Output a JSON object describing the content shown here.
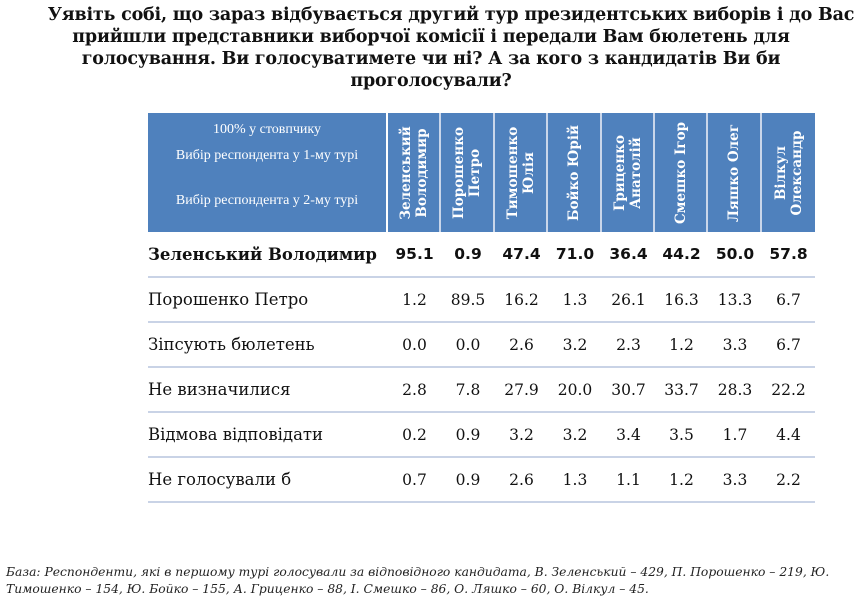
{
  "title": {
    "lines": [
      "Уявіть собі, що зараз відбувається другий тур президентських виборів і до Вас",
      "прийшли представники виборчої комісії і передали Вам бюлетень для",
      "голосування. Ви голосуватимете чи ні? А за кого з кандидатів Ви би",
      "проголосували?"
    ]
  },
  "table": {
    "stub_header": {
      "line1": "100% у стовпчику",
      "line2": "Вибір респондента у 1-му турі",
      "line3": "Вибір респондента у 2-му турі"
    },
    "columns": [
      {
        "line1": "Зеленський",
        "line2": "Володимир"
      },
      {
        "line1": "Порошенко",
        "line2": "Петро"
      },
      {
        "line1": "Тимошенко",
        "line2": "Юлія"
      },
      {
        "line1": "Бойко Юрій",
        "line2": ""
      },
      {
        "line1": "Гриценко",
        "line2": "Анатолій"
      },
      {
        "line1": "Смешко Ігор",
        "line2": ""
      },
      {
        "line1": "Ляшко Олег",
        "line2": ""
      },
      {
        "line1": "Вілкул",
        "line2": "Олександр"
      }
    ],
    "rows": [
      {
        "label": "Зеленський Володимир",
        "values": [
          "95.1",
          "0.9",
          "47.4",
          "71.0",
          "36.4",
          "44.2",
          "50.0",
          "57.8"
        ]
      },
      {
        "label": "Порошенко Петро",
        "values": [
          "1.2",
          "89.5",
          "16.2",
          "1.3",
          "26.1",
          "16.3",
          "13.3",
          "6.7"
        ]
      },
      {
        "label": "Зіпсують бюлетень",
        "values": [
          "0.0",
          "0.0",
          "2.6",
          "3.2",
          "2.3",
          "1.2",
          "3.3",
          "6.7"
        ]
      },
      {
        "label": "Не визначилися",
        "values": [
          "2.8",
          "7.8",
          "27.9",
          "20.0",
          "30.7",
          "33.7",
          "28.3",
          "22.2"
        ]
      },
      {
        "label": "Відмова відповідати",
        "values": [
          "0.2",
          "0.9",
          "3.2",
          "3.2",
          "3.4",
          "3.5",
          "1.7",
          "4.4"
        ]
      },
      {
        "label": "Не голосували б",
        "values": [
          "0.7",
          "0.9",
          "2.6",
          "1.3",
          "1.1",
          "1.2",
          "3.3",
          "2.2"
        ]
      }
    ]
  },
  "footnote": {
    "line1": "База: Респонденти, які в першому турі голосували за відповідного кандидата, В. Зеленський – 429, П. Порошенко – 219, Ю.",
    "line2": "Тимошенко – 154, Ю. Бойко – 155, А. Гриценко – 88, І. Смешко – 86, О. Ляшко – 60, О. Вілкул – 45."
  },
  "colors": {
    "header_bg": "#4f81bd",
    "header_text": "#ffffff",
    "row_divider": "#c9d3e6",
    "text": "#111111"
  },
  "chart_data": {
    "type": "table",
    "title": "Уявіть собі, що зараз відбувається другий тур президентських виборів і до Вас прийшли представники виборчої комісії і передали Вам бюлетень для голосування. Ви голосуватимете чи ні? А за кого з кандидатів Ви би проголосували?",
    "subtitle": "100% у стовпчику",
    "column_axis_label": "Вибір респондента у 1-му турі",
    "row_axis_label": "Вибір респондента у 2-му турі",
    "categories": [
      "Зеленський Володимир",
      "Порошенко Петро",
      "Тимошенко Юлія",
      "Бойко Юрій",
      "Гриценко Анатолій",
      "Смешко Ігор",
      "Ляшко Олег",
      "Вілкул Олександр"
    ],
    "series": [
      {
        "name": "Зеленський Володимир",
        "values": [
          95.1,
          0.9,
          47.4,
          71.0,
          36.4,
          44.2,
          50.0,
          57.8
        ]
      },
      {
        "name": "Порошенко Петро",
        "values": [
          1.2,
          89.5,
          16.2,
          1.3,
          26.1,
          16.3,
          13.3,
          6.7
        ]
      },
      {
        "name": "Зіпсують бюлетень",
        "values": [
          0.0,
          0.0,
          2.6,
          3.2,
          2.3,
          1.2,
          3.3,
          6.7
        ]
      },
      {
        "name": "Не визначилися",
        "values": [
          2.8,
          7.8,
          27.9,
          20.0,
          30.7,
          33.7,
          28.3,
          22.2
        ]
      },
      {
        "name": "Відмова відповідати",
        "values": [
          0.2,
          0.9,
          3.2,
          3.2,
          3.4,
          3.5,
          1.7,
          4.4
        ]
      },
      {
        "name": "Не голосували б",
        "values": [
          0.7,
          0.9,
          2.6,
          1.3,
          1.1,
          1.2,
          3.3,
          2.2
        ]
      }
    ],
    "base_n": {
      "Зеленський": 429,
      "Порошенко": 219,
      "Тимошенко": 154,
      "Бойко": 155,
      "Гриценко": 88,
      "Смешко": 86,
      "Ляшко": 60,
      "Вілкул": 45
    },
    "units": "%"
  }
}
